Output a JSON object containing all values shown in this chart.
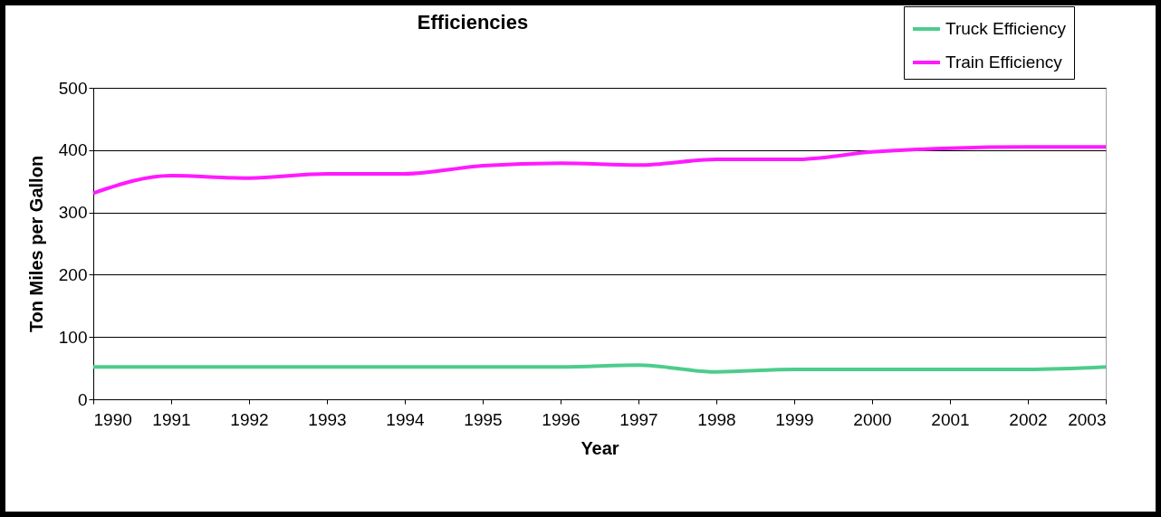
{
  "chart_data": {
    "type": "line",
    "title": "Efficiencies",
    "xlabel": "Year",
    "ylabel": "Ton Miles per Gallon",
    "x": [
      1990,
      1991,
      1992,
      1993,
      1994,
      1995,
      1996,
      1997,
      1998,
      1999,
      2000,
      2001,
      2002,
      2003
    ],
    "series": [
      {
        "name": "Truck Efficiency",
        "color": "#4dcc8c",
        "values": [
          52,
          52,
          52,
          52,
          52,
          52,
          52,
          55,
          44,
          48,
          48,
          48,
          48,
          52
        ]
      },
      {
        "name": "Train Efficiency",
        "color": "#ff1aff",
        "values": [
          331,
          359,
          355,
          362,
          362,
          375,
          379,
          376,
          385,
          385,
          397,
          403,
          405,
          405
        ]
      }
    ],
    "xlim": [
      1990,
      2003
    ],
    "xticks": [
      1990,
      1991,
      1992,
      1993,
      1994,
      1995,
      1996,
      1997,
      1998,
      1999,
      2000,
      2001,
      2002,
      2003
    ],
    "ylim": [
      0,
      500
    ],
    "yticks": [
      0,
      100,
      200,
      300,
      400,
      500
    ],
    "grid": "y",
    "legend": "top right",
    "marker": "none",
    "line_style": "solid"
  }
}
